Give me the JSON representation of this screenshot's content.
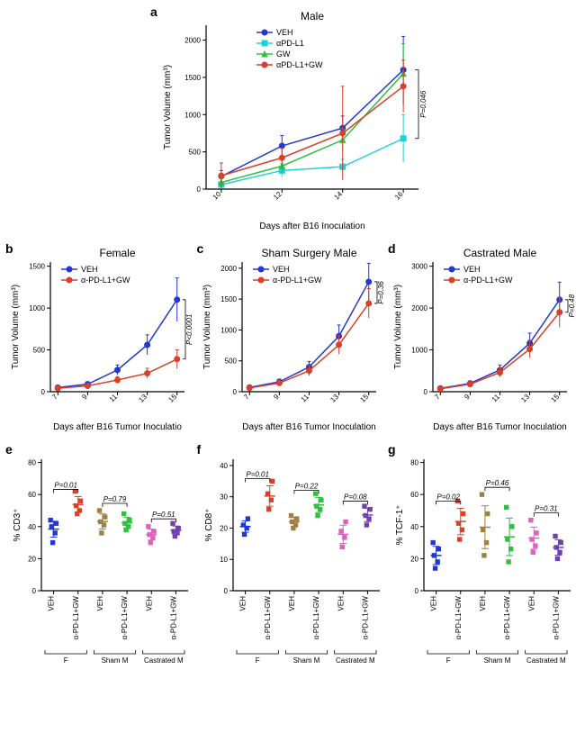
{
  "colors": {
    "veh": "#2038d0",
    "apdl1": "#20d0d8",
    "gw": "#30c040",
    "apdl1gw": "#d84028",
    "f_veh": "#2038d0",
    "f_tx": "#d84028",
    "sham_veh": "#a08040",
    "sham_tx": "#30c040",
    "cast_veh": "#e060c0",
    "cast_tx": "#7040b0",
    "axis": "#000000",
    "bg": "#ffffff"
  },
  "panel_a": {
    "label": "a",
    "title": "Male",
    "xlabel": "Days after B16 Inoculation",
    "ylabel": "Tumor Volume (mm³)",
    "xticks": [
      10,
      12,
      14,
      16
    ],
    "yticks": [
      0,
      500,
      1000,
      1500,
      2000
    ],
    "ylim": [
      0,
      2200
    ],
    "xlim": [
      9.5,
      16.5
    ],
    "pval": "P=0.046",
    "legend": [
      "VEH",
      "αPD-L1",
      "GW",
      "αPD-L1+GW"
    ],
    "series": {
      "VEH": {
        "color_key": "veh",
        "marker": "circle",
        "x": [
          10,
          12,
          14,
          16
        ],
        "y": [
          170,
          580,
          820,
          1600
        ],
        "err": [
          80,
          140,
          160,
          450
        ]
      },
      "αPD-L1": {
        "color_key": "apdl1",
        "marker": "square",
        "x": [
          10,
          12,
          14,
          16
        ],
        "y": [
          60,
          250,
          300,
          680
        ],
        "err": [
          40,
          90,
          100,
          320
        ]
      },
      "GW": {
        "color_key": "gw",
        "marker": "triangle",
        "x": [
          10,
          12,
          14,
          16
        ],
        "y": [
          90,
          310,
          660,
          1550
        ],
        "err": [
          50,
          100,
          150,
          400
        ]
      },
      "αPD-L1+GW": {
        "color_key": "apdl1gw",
        "marker": "circle",
        "x": [
          10,
          12,
          14,
          16
        ],
        "y": [
          180,
          420,
          750,
          1380
        ],
        "err": [
          170,
          130,
          630,
          350
        ]
      }
    }
  },
  "panel_b": {
    "label": "b",
    "title": "Female",
    "xlabel": "Days after B16 Tumor Inoculatio",
    "ylabel": "Tumor Volume (mm³)",
    "xticks": [
      7,
      9,
      11,
      13,
      15
    ],
    "yticks": [
      0,
      500,
      1000,
      1500
    ],
    "ylim": [
      0,
      1550
    ],
    "xlim": [
      6.5,
      15.5
    ],
    "pval": "P<0.0001",
    "legend": [
      "VEH",
      "α-PD-L1+GW"
    ],
    "series": {
      "VEH": {
        "color_key": "veh",
        "marker": "circle",
        "x": [
          7,
          9,
          11,
          13,
          15
        ],
        "y": [
          50,
          90,
          260,
          560,
          1100
        ],
        "err": [
          20,
          30,
          60,
          120,
          260
        ]
      },
      "α-PD-L1+GW": {
        "color_key": "apdl1gw",
        "marker": "circle",
        "x": [
          7,
          9,
          11,
          13,
          15
        ],
        "y": [
          40,
          70,
          140,
          220,
          390
        ],
        "err": [
          15,
          25,
          40,
          60,
          110
        ]
      }
    }
  },
  "panel_c": {
    "label": "c",
    "title": "Sham Surgery Male",
    "xlabel": "Days after B16 Tumor Inoculation",
    "ylabel": "Tumor Volume (mm³)",
    "xticks": [
      7,
      9,
      11,
      13,
      15
    ],
    "yticks": [
      0,
      500,
      1000,
      1500,
      2000
    ],
    "ylim": [
      0,
      2100
    ],
    "xlim": [
      6.5,
      15.5
    ],
    "pval": "P=0.36",
    "legend": [
      "VEH",
      "α-PD-L1+GW"
    ],
    "series": {
      "VEH": {
        "color_key": "veh",
        "marker": "circle",
        "x": [
          7,
          9,
          11,
          13,
          15
        ],
        "y": [
          70,
          160,
          400,
          900,
          1780
        ],
        "err": [
          25,
          45,
          90,
          180,
          300
        ]
      },
      "α-PD-L1+GW": {
        "color_key": "apdl1gw",
        "marker": "circle",
        "x": [
          7,
          9,
          11,
          13,
          15
        ],
        "y": [
          60,
          140,
          340,
          760,
          1430
        ],
        "err": [
          20,
          40,
          80,
          150,
          240
        ]
      }
    }
  },
  "panel_d": {
    "label": "d",
    "title": "Castrated Male",
    "xlabel": "Days after B16 Tumor Inoculation",
    "ylabel": "Tumor Volume (mm³)",
    "xticks": [
      7,
      9,
      11,
      13,
      15
    ],
    "yticks": [
      0,
      1000,
      2000,
      3000
    ],
    "ylim": [
      0,
      3100
    ],
    "xlim": [
      6.5,
      15.5
    ],
    "pval": "P=0.48",
    "legend": [
      "VEH",
      "α-PD-L1+GW"
    ],
    "series": {
      "VEH": {
        "color_key": "veh",
        "marker": "circle",
        "x": [
          7,
          9,
          11,
          13,
          15
        ],
        "y": [
          80,
          200,
          520,
          1160,
          2200
        ],
        "err": [
          30,
          60,
          120,
          240,
          420
        ]
      },
      "α-PD-L1+GW": {
        "color_key": "apdl1gw",
        "marker": "circle",
        "x": [
          7,
          9,
          11,
          13,
          15
        ],
        "y": [
          70,
          180,
          460,
          1020,
          1900
        ],
        "err": [
          25,
          55,
          110,
          210,
          360
        ]
      }
    }
  },
  "panel_e": {
    "label": "e",
    "ylabel": "% CD3⁺",
    "yticks": [
      0,
      20,
      40,
      60,
      80
    ],
    "ylim": [
      0,
      82
    ],
    "groups": [
      {
        "name": "F",
        "pairs": [
          {
            "label": "VEH",
            "color_key": "f_veh",
            "vals": [
              30,
              36,
              40,
              42,
              44
            ],
            "p": "P=0.01"
          },
          {
            "label": "α-PD-L1+GW",
            "color_key": "f_tx",
            "vals": [
              48,
              50,
              53,
              56,
              62
            ]
          }
        ]
      },
      {
        "name": "Sham M",
        "pairs": [
          {
            "label": "VEH",
            "color_key": "sham_veh",
            "vals": [
              36,
              41,
              43,
              46,
              50
            ],
            "p": "P=0.79"
          },
          {
            "label": "α-PD-L1+GW",
            "color_key": "sham_tx",
            "vals": [
              38,
              40,
              42,
              44,
              48
            ]
          }
        ]
      },
      {
        "name": "Castrated M",
        "pairs": [
          {
            "label": "VEH",
            "color_key": "cast_veh",
            "vals": [
              30,
              33,
              35,
              37,
              40
            ],
            "p": "P=0.51"
          },
          {
            "label": "α-PD-L1+GW",
            "color_key": "cast_tx",
            "vals": [
              34,
              36,
              37,
              39,
              42
            ]
          }
        ]
      }
    ]
  },
  "panel_f": {
    "label": "f",
    "ylabel": "% CD8⁺",
    "yticks": [
      0,
      10,
      20,
      30,
      40
    ],
    "ylim": [
      0,
      42
    ],
    "groups": [
      {
        "name": "F",
        "pairs": [
          {
            "label": "VEH",
            "color_key": "f_veh",
            "vals": [
              18,
              20,
              21,
              23
            ],
            "p": "P=0.01"
          },
          {
            "label": "α-PD-L1+GW",
            "color_key": "f_tx",
            "vals": [
              26,
              29,
              31,
              35
            ]
          }
        ]
      },
      {
        "name": "Sham M",
        "pairs": [
          {
            "label": "VEH",
            "color_key": "sham_veh",
            "vals": [
              20,
              21,
              22,
              23,
              24
            ],
            "p": "P=0.22"
          },
          {
            "label": "α-PD-L1+GW",
            "color_key": "sham_tx",
            "vals": [
              24,
              26,
              27,
              29,
              31
            ]
          }
        ]
      },
      {
        "name": "Castrated M",
        "pairs": [
          {
            "label": "VEH",
            "color_key": "cast_veh",
            "vals": [
              14,
              17,
              19,
              22
            ],
            "p": "P=0.08"
          },
          {
            "label": "α-PD-L1+GW",
            "color_key": "cast_tx",
            "vals": [
              21,
              23,
              24,
              26,
              27
            ]
          }
        ]
      }
    ]
  },
  "panel_g": {
    "label": "g",
    "ylabel": "% TCF-1⁺",
    "yticks": [
      0,
      20,
      40,
      60,
      80
    ],
    "ylim": [
      0,
      82
    ],
    "groups": [
      {
        "name": "F",
        "pairs": [
          {
            "label": "VEH",
            "color_key": "f_veh",
            "vals": [
              14,
              18,
              22,
              26,
              30
            ],
            "p": "P=0.02"
          },
          {
            "label": "α-PD-L1+GW",
            "color_key": "f_tx",
            "vals": [
              32,
              38,
              42,
              48,
              56
            ]
          }
        ]
      },
      {
        "name": "Sham M",
        "pairs": [
          {
            "label": "VEH",
            "color_key": "sham_veh",
            "vals": [
              22,
              30,
              38,
              48,
              60
            ],
            "p": "P=0.46"
          },
          {
            "label": "α-PD-L1+GW",
            "color_key": "sham_tx",
            "vals": [
              18,
              26,
              32,
              40,
              52
            ]
          }
        ]
      },
      {
        "name": "Castrated M",
        "pairs": [
          {
            "label": "VEH",
            "color_key": "cast_veh",
            "vals": [
              24,
              28,
              32,
              36,
              44
            ],
            "p": "P=0.31"
          },
          {
            "label": "α-PD-L1+GW",
            "color_key": "cast_tx",
            "vals": [
              20,
              24,
              27,
              30,
              34
            ]
          }
        ]
      }
    ]
  }
}
